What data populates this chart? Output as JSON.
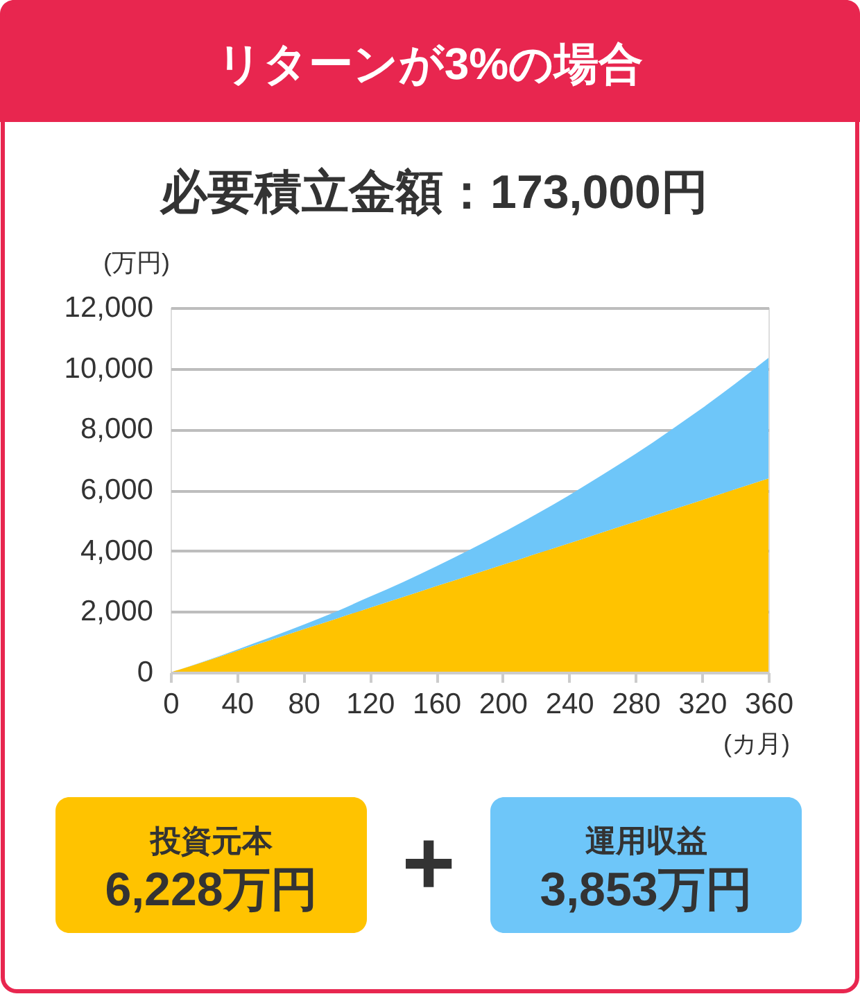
{
  "chart_data": {
    "type": "area",
    "stacked": true,
    "title": "リターンが3%の場合",
    "subtitle": "必要積立金額：173,000円",
    "xlabel": "(カ月)",
    "ylabel": "(万円)",
    "x": [
      0,
      20,
      40,
      60,
      80,
      100,
      120,
      140,
      160,
      180,
      200,
      220,
      240,
      260,
      280,
      300,
      320,
      340,
      360
    ],
    "series": [
      {
        "color": "#ffc300",
        "values": [
          0,
          350,
          710,
          1060,
          1420,
          1770,
          2130,
          2480,
          2840,
          3190,
          3540,
          3900,
          4250,
          4610,
          4960,
          5320,
          5670,
          6030,
          6380
        ]
      },
      {
        "color": "#6ec6f9",
        "values": [
          0,
          10,
          40,
          90,
          150,
          240,
          360,
          490,
          650,
          840,
          1060,
          1300,
          1580,
          1890,
          2230,
          2610,
          3020,
          3470,
          3970
        ]
      }
    ],
    "xlim": [
      0,
      360
    ],
    "xticks": [
      0,
      40,
      80,
      120,
      160,
      200,
      240,
      280,
      320,
      360
    ],
    "ylim": [
      0,
      12000
    ],
    "yticks": [
      0,
      {
        "value": 2000,
        "label": "2,000"
      },
      {
        "value": 4000,
        "label": "4,000"
      },
      {
        "value": 6000,
        "label": "6,000"
      },
      {
        "value": 8000,
        "label": "8,000"
      },
      {
        "value": 10000,
        "label": "10,000"
      },
      {
        "value": 12000,
        "label": "12,000"
      }
    ],
    "grid": "y",
    "annotations": [
      "投資元本",
      "6,228万円",
      "運用収益",
      "3,853万円",
      "+"
    ]
  }
}
